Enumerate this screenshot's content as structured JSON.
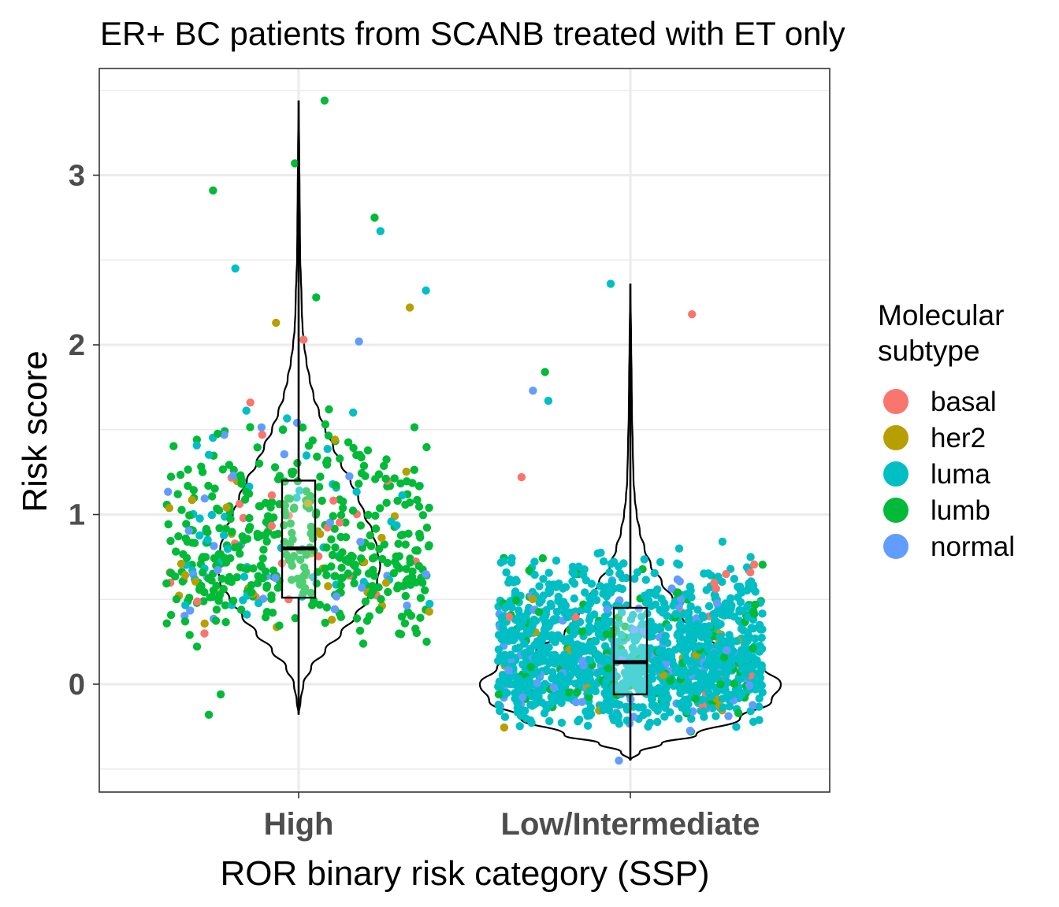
{
  "chart_data": {
    "type": "violin-jitter",
    "title": "ER+ BC patients from SCANB treated with ET only",
    "xlabel": "ROR binary risk category (SSP)",
    "ylabel": "Risk score",
    "categories": [
      "High",
      "Low/Intermediate"
    ],
    "yticks": [
      0,
      1,
      2,
      3
    ],
    "ylim": [
      -0.63,
      3.62
    ],
    "grid": true,
    "legend": {
      "title_lines": [
        "Molecular",
        "subtype"
      ],
      "position": "right",
      "entries": [
        {
          "label": "basal",
          "color": "#F8766D"
        },
        {
          "label": "her2",
          "color": "#B79F00"
        },
        {
          "label": "luma",
          "color": "#00BFC4"
        },
        {
          "label": "lumb",
          "color": "#00BA38"
        },
        {
          "label": "normal",
          "color": "#619CFF"
        }
      ]
    },
    "boxplots": [
      {
        "category": "High",
        "min": -0.18,
        "q1": 0.51,
        "median": 0.8,
        "q3": 1.2,
        "max": 3.44
      },
      {
        "category": "Low/Intermediate",
        "min": -0.45,
        "q1": -0.06,
        "median": 0.13,
        "q3": 0.45,
        "max": 2.36
      }
    ],
    "violins": [
      {
        "category": "High",
        "profile": [
          [
            -0.18,
            0.0
          ],
          [
            -0.1,
            0.012
          ],
          [
            0.0,
            0.03
          ],
          [
            0.1,
            0.08
          ],
          [
            0.2,
            0.17
          ],
          [
            0.3,
            0.27
          ],
          [
            0.4,
            0.36
          ],
          [
            0.5,
            0.44
          ],
          [
            0.6,
            0.5
          ],
          [
            0.7,
            0.52
          ],
          [
            0.8,
            0.5
          ],
          [
            0.9,
            0.47
          ],
          [
            1.0,
            0.42
          ],
          [
            1.1,
            0.38
          ],
          [
            1.2,
            0.33
          ],
          [
            1.3,
            0.27
          ],
          [
            1.4,
            0.22
          ],
          [
            1.5,
            0.17
          ],
          [
            1.6,
            0.13
          ],
          [
            1.7,
            0.095
          ],
          [
            1.8,
            0.07
          ],
          [
            1.9,
            0.05
          ],
          [
            2.0,
            0.035
          ],
          [
            2.1,
            0.025
          ],
          [
            2.2,
            0.02
          ],
          [
            2.3,
            0.018
          ],
          [
            2.4,
            0.014
          ],
          [
            2.5,
            0.01
          ],
          [
            2.7,
            0.008
          ],
          [
            2.9,
            0.006
          ],
          [
            3.1,
            0.004
          ],
          [
            3.44,
            0.0
          ]
        ]
      },
      {
        "category": "Low/Intermediate",
        "profile": [
          [
            -0.45,
            0.0
          ],
          [
            -0.4,
            0.06
          ],
          [
            -0.35,
            0.2
          ],
          [
            -0.3,
            0.42
          ],
          [
            -0.2,
            0.7
          ],
          [
            -0.1,
            0.9
          ],
          [
            0.0,
            0.96
          ],
          [
            0.1,
            0.85
          ],
          [
            0.2,
            0.6
          ],
          [
            0.3,
            0.42
          ],
          [
            0.4,
            0.33
          ],
          [
            0.5,
            0.27
          ],
          [
            0.6,
            0.2
          ],
          [
            0.7,
            0.13
          ],
          [
            0.8,
            0.09
          ],
          [
            0.9,
            0.06
          ],
          [
            1.0,
            0.04
          ],
          [
            1.1,
            0.028
          ],
          [
            1.2,
            0.02
          ],
          [
            1.4,
            0.015
          ],
          [
            1.6,
            0.01
          ],
          [
            1.8,
            0.008
          ],
          [
            2.0,
            0.005
          ],
          [
            2.36,
            0.0
          ]
        ]
      }
    ],
    "points": {
      "note": "jittered individual patients",
      "High": {
        "count": 560,
        "subtype_mix": {
          "lumb": 0.74,
          "luma": 0.11,
          "her2": 0.07,
          "normal": 0.06,
          "basal": 0.02
        },
        "outliers": [
          {
            "y": 3.44,
            "subtype": "lumb"
          },
          {
            "y": 3.07,
            "subtype": "lumb"
          },
          {
            "y": 2.91,
            "subtype": "lumb"
          },
          {
            "y": 2.75,
            "subtype": "lumb"
          },
          {
            "y": 2.67,
            "subtype": "luma"
          },
          {
            "y": 2.45,
            "subtype": "luma"
          },
          {
            "y": 2.32,
            "subtype": "luma"
          },
          {
            "y": 2.28,
            "subtype": "lumb"
          },
          {
            "y": 2.22,
            "subtype": "her2"
          },
          {
            "y": 2.13,
            "subtype": "her2"
          },
          {
            "y": 2.03,
            "subtype": "basal"
          },
          {
            "y": 2.02,
            "subtype": "normal"
          },
          {
            "y": 1.66,
            "subtype": "basal"
          },
          {
            "y": 1.47,
            "subtype": "basal"
          },
          {
            "y": -0.18,
            "subtype": "lumb"
          },
          {
            "y": -0.06,
            "subtype": "lumb"
          }
        ]
      },
      "Low/Intermediate": {
        "count": 1480,
        "subtype_mix": {
          "luma": 0.8,
          "normal": 0.08,
          "lumb": 0.09,
          "her2": 0.015,
          "basal": 0.015
        },
        "outliers": [
          {
            "y": 2.36,
            "subtype": "luma"
          },
          {
            "y": 2.18,
            "subtype": "basal"
          },
          {
            "y": 1.84,
            "subtype": "lumb"
          },
          {
            "y": 1.73,
            "subtype": "normal"
          },
          {
            "y": 1.67,
            "subtype": "luma"
          },
          {
            "y": 1.22,
            "subtype": "basal"
          },
          {
            "y": -0.45,
            "subtype": "normal"
          }
        ]
      }
    }
  }
}
